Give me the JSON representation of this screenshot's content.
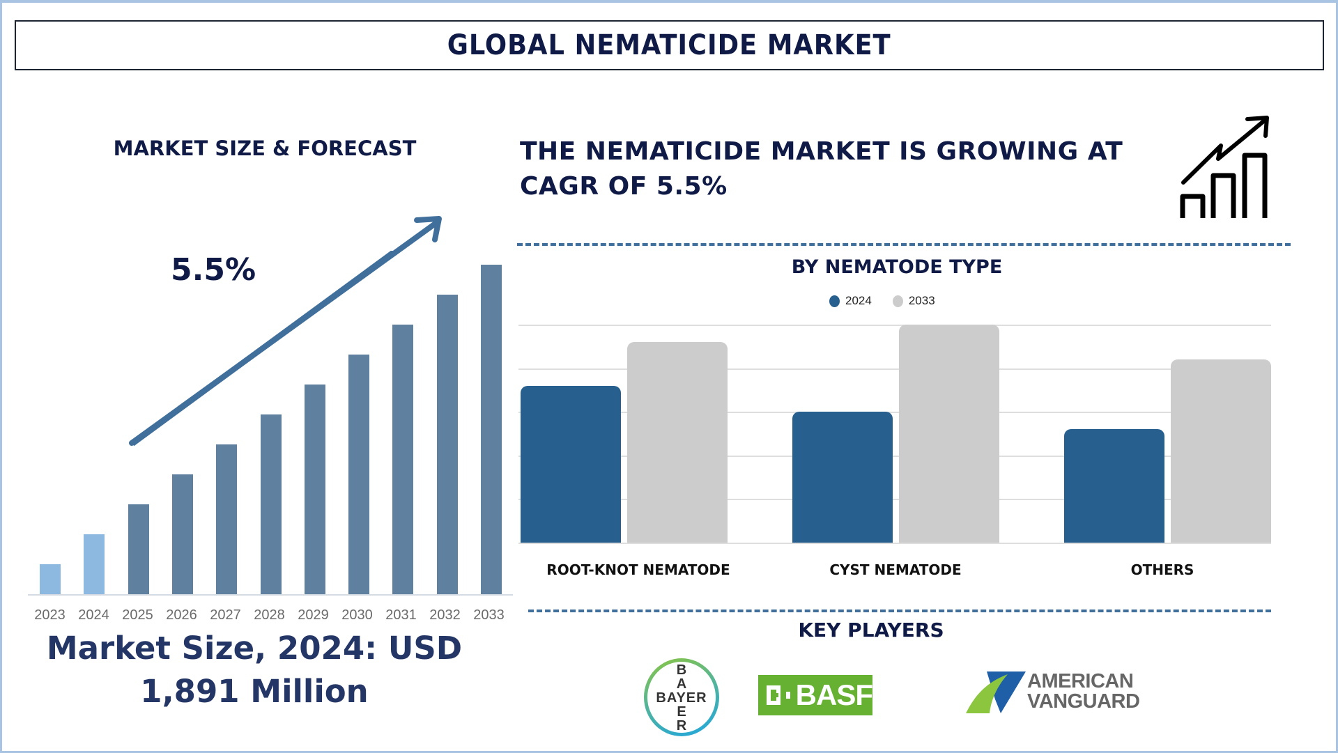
{
  "title": "GLOBAL NEMATICIDE MARKET",
  "left_panel": {
    "heading": "MARKET SIZE & FORECAST",
    "cagr_label": "5.5%",
    "market_size_line1": "Market Size, 2024: USD",
    "market_size_line2": "1,891 Million"
  },
  "right_panel": {
    "headline": "THE NEMATICIDE MARKET IS GROWING AT CAGR OF 5.5%",
    "icon": "growth-chart-icon",
    "segment_heading": "BY NEMATODE TYPE",
    "key_players_heading": "KEY PLAYERS",
    "key_players": [
      {
        "name": "BAYER",
        "logo_text_horizontal": "BAYER",
        "logo_text_vertical": [
          "B",
          "A",
          "Y",
          "E",
          "R"
        ]
      },
      {
        "name": "BASF",
        "logo_text": "BASF"
      },
      {
        "name": "American Vanguard",
        "logo_text_line1": "AMERICAN",
        "logo_text_line2": "VANGUARD"
      }
    ]
  },
  "colors": {
    "navy_text": "#0f1b46",
    "historic_bar": "#8db8e0",
    "forecast_bar": "#5f819f",
    "arrow": "#3f6f9a",
    "series_2024": "#27608e",
    "series_2033": "#cccccc",
    "basf_green": "#66b032"
  },
  "chart_data": [
    {
      "type": "bar",
      "title": "MARKET SIZE & FORECAST",
      "categories": [
        "2023",
        "2024",
        "2025",
        "2026",
        "2027",
        "2028",
        "2029",
        "2030",
        "2031",
        "2032",
        "2033"
      ],
      "values": [
        1,
        2,
        3,
        4,
        5,
        6,
        7,
        8,
        9,
        10,
        11
      ],
      "value_note": "relative bar heights (no axis values shown); linearly increasing",
      "historic_years": [
        "2023",
        "2024"
      ],
      "annotation": "5.5%",
      "xlabel": "",
      "ylabel": "",
      "grid": false
    },
    {
      "type": "bar",
      "title": "BY NEMATODE TYPE",
      "categories": [
        "ROOT-KNOT NEMATODE",
        "CYST NEMATODE",
        "OTHERS"
      ],
      "series": [
        {
          "name": "2024",
          "values": [
            3.6,
            3.0,
            2.6
          ]
        },
        {
          "name": "2033",
          "values": [
            4.6,
            5.0,
            4.2
          ]
        }
      ],
      "value_note": "relative units read from 5 unlabeled gridlines",
      "ylim": [
        0,
        5
      ],
      "legend_position": "top",
      "grid": true
    }
  ]
}
